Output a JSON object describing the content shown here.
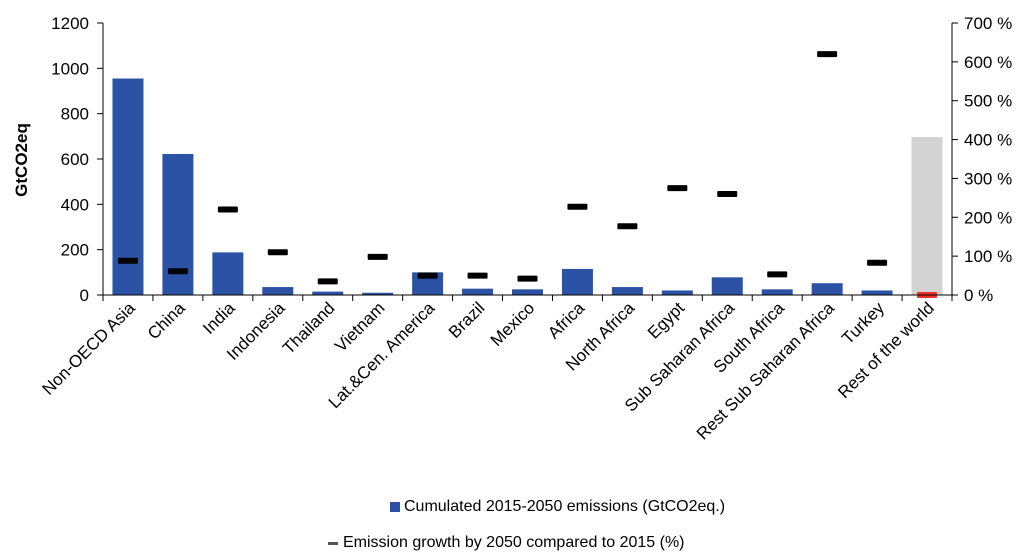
{
  "chart_data": {
    "type": "bar",
    "categories": [
      "Non-OECD Asia",
      "China",
      "India",
      "Indonesia",
      "Thailand",
      "Vietnam",
      "Lat.&Cen. America",
      "Brazil",
      "Mexico",
      "Africa",
      "North Africa",
      "Egypt",
      "Sub Saharan Africa",
      "South Africa",
      "Rest Sub Saharan Africa",
      "Turkey",
      "Rest of the world"
    ],
    "series": [
      {
        "name": "Cumulated 2015-2050 emissions (GtCO2eq.)",
        "axis": "left",
        "kind": "bar",
        "values": [
          955,
          622,
          188,
          35,
          15,
          10,
          100,
          28,
          25,
          115,
          35,
          20,
          78,
          25,
          52,
          20,
          697
        ]
      },
      {
        "name": "Emission growth by 2050 compared to 2015 (%)",
        "axis": "right",
        "kind": "marker",
        "values": [
          88,
          61,
          220,
          110,
          35,
          98,
          50,
          50,
          42,
          227,
          177,
          275,
          260,
          53,
          620,
          83,
          0
        ]
      }
    ],
    "highlight": {
      "category": "Rest of the world",
      "bar_color": "#d3d3d3",
      "marker_color": "#e8322b"
    },
    "colors": {
      "bar": "#2b52a5",
      "marker": "#000000"
    },
    "ylabel": "GtCO2eq",
    "ylim": [
      0,
      1200
    ],
    "yticks": [
      "0",
      "200",
      "400",
      "600",
      "800",
      "1000",
      "1200"
    ],
    "y2lim": [
      0,
      700
    ],
    "y2ticks": [
      "0 %",
      "100 %",
      "200 %",
      "300 %",
      "400 %",
      "500 %",
      "600 %",
      "700 %"
    ],
    "grid": false,
    "legend_placement": "bottom-center"
  }
}
